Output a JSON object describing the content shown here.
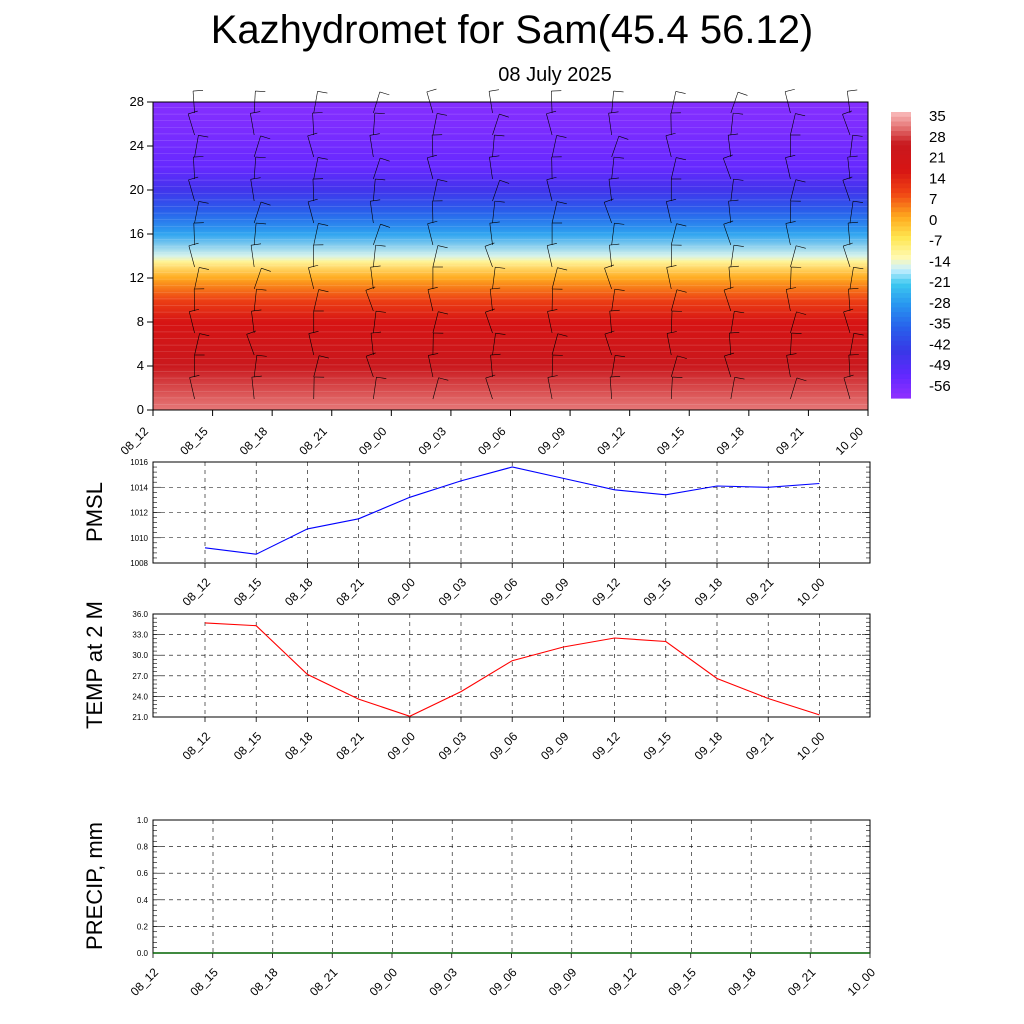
{
  "title": "Kazhydromet for Sam(45.4 56.12)",
  "subtitle": "08 July 2025",
  "time_labels": [
    "08_12",
    "08_15",
    "08_18",
    "08_21",
    "09_00",
    "09_03",
    "09_06",
    "09_09",
    "09_12",
    "09_15",
    "09_18",
    "09_21",
    "10_00"
  ],
  "colors": {
    "pmsl_line": "#0000ff",
    "temp_line": "#ff0000",
    "precip_line": "#006400",
    "grid": "#000000"
  },
  "chart_data": [
    {
      "type": "heatmap",
      "title": "Kazhydromet for Sam(45.4 56.12)",
      "subtitle": "08 July 2025",
      "x_ticks": [
        "08_12",
        "08_15",
        "08_18",
        "08_21",
        "09_00",
        "09_03",
        "09_06",
        "09_09",
        "09_12",
        "09_15",
        "09_18",
        "09_21",
        "10_00"
      ],
      "y_ticks": [
        0,
        4,
        8,
        12,
        16,
        20,
        24,
        28
      ],
      "ylim": [
        0,
        28
      ],
      "colorbar_labels": [
        35,
        28,
        21,
        14,
        7,
        0,
        -7,
        -14,
        -21,
        -28,
        -35,
        -42,
        -49,
        -56
      ],
      "colorbar_range": [
        -60,
        38
      ],
      "temperature_profile_by_level": [
        {
          "level": 0,
          "value": 33
        },
        {
          "level": 2,
          "value": 30
        },
        {
          "level": 4,
          "value": 26
        },
        {
          "level": 6,
          "value": 22
        },
        {
          "level": 8,
          "value": 18
        },
        {
          "level": 10,
          "value": 11
        },
        {
          "level": 12,
          "value": 2
        },
        {
          "level": 13.5,
          "value": -10
        },
        {
          "level": 14,
          "value": -15
        },
        {
          "level": 16,
          "value": -26
        },
        {
          "level": 18,
          "value": -36
        },
        {
          "level": 20,
          "value": -46
        },
        {
          "level": 22,
          "value": -53
        },
        {
          "level": 24,
          "value": -55
        },
        {
          "level": 26,
          "value": -57
        },
        {
          "level": 28,
          "value": -58
        }
      ],
      "wind_barbs": "shown",
      "legend": "right"
    },
    {
      "type": "line",
      "ylabel": "PMSL",
      "categories": [
        "08_12",
        "08_15",
        "08_18",
        "08_21",
        "09_00",
        "09_03",
        "09_06",
        "09_09",
        "09_12",
        "09_15",
        "09_18",
        "09_21",
        "10_00"
      ],
      "values": [
        1009.2,
        1008.7,
        1010.7,
        1011.5,
        1013.2,
        1014.5,
        1015.6,
        1014.7,
        1013.8,
        1013.4,
        1014.1,
        1014.0,
        1014.3
      ],
      "ylim": [
        1008,
        1016
      ],
      "y_ticks": [
        "1008",
        "1010",
        "1012",
        "1014",
        "1016"
      ],
      "grid": true
    },
    {
      "type": "line",
      "ylabel": "TEMP at 2 M",
      "categories": [
        "08_12",
        "08_15",
        "08_18",
        "08_21",
        "09_00",
        "09_03",
        "09_06",
        "09_09",
        "09_12",
        "09_15",
        "09_18",
        "09_21",
        "10_00"
      ],
      "values": [
        34.7,
        34.3,
        27.2,
        23.6,
        21.1,
        24.7,
        29.2,
        31.2,
        32.5,
        32.0,
        26.6,
        23.7,
        21.3
      ],
      "ylim": [
        21,
        36
      ],
      "y_ticks": [
        "21.0",
        "24.0",
        "27.0",
        "30.0",
        "33.0",
        "36.0"
      ],
      "grid": true
    },
    {
      "type": "line",
      "ylabel": "PRECIP, mm",
      "categories": [
        "08_12",
        "08_15",
        "08_18",
        "08_21",
        "09_00",
        "09_03",
        "09_06",
        "09_09",
        "09_12",
        "09_15",
        "09_18",
        "09_21",
        "10_00"
      ],
      "values": [
        0,
        0,
        0,
        0,
        0,
        0,
        0,
        0,
        0,
        0,
        0,
        0,
        0
      ],
      "ylim": [
        0,
        1
      ],
      "y_ticks": [
        "0.0",
        "0.2",
        "0.4",
        "0.6",
        "0.8",
        "1.0"
      ],
      "grid": true
    }
  ]
}
